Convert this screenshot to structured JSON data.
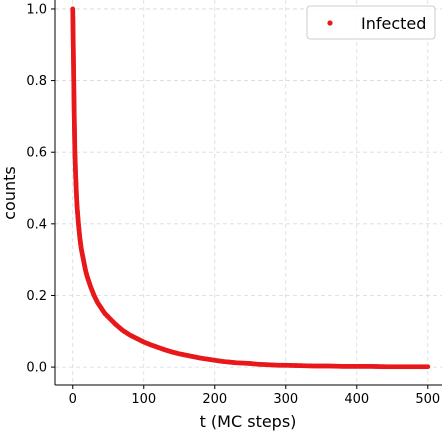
{
  "chart_data": {
    "type": "scatter",
    "xlabel": "t (MC steps)",
    "ylabel": "counts",
    "xlim": [
      -25,
      520
    ],
    "ylim": [
      -0.05,
      1.025
    ],
    "x_ticks": [
      0,
      100,
      200,
      300,
      400,
      500
    ],
    "x_tick_labels": [
      "0",
      "100",
      "200",
      "300",
      "400",
      "500"
    ],
    "y_ticks": [
      0.0,
      0.2,
      0.4,
      0.6,
      0.8,
      1.0
    ],
    "y_tick_labels": [
      "0.0",
      "0.2",
      "0.4",
      "0.6",
      "0.8",
      "1.0"
    ],
    "grid": true,
    "legend_position": "top-right",
    "series": [
      {
        "name": "Infected",
        "color": "#e8191b",
        "marker": "dot",
        "x": [
          0,
          1,
          2,
          3,
          4,
          5,
          6,
          8,
          10,
          12,
          15,
          18,
          20,
          25,
          30,
          35,
          40,
          45,
          50,
          60,
          70,
          80,
          90,
          100,
          110,
          120,
          130,
          140,
          150,
          160,
          170,
          180,
          190,
          200,
          210,
          220,
          230,
          240,
          250,
          260,
          270,
          280,
          290,
          300,
          320,
          340,
          360,
          380,
          400,
          420,
          440,
          460,
          480,
          500
        ],
        "y": [
          1.0,
          0.86,
          0.71,
          0.6,
          0.54,
          0.49,
          0.45,
          0.4,
          0.36,
          0.33,
          0.3,
          0.27,
          0.255,
          0.225,
          0.2,
          0.18,
          0.165,
          0.15,
          0.14,
          0.12,
          0.103,
          0.09,
          0.08,
          0.07,
          0.062,
          0.055,
          0.048,
          0.042,
          0.037,
          0.033,
          0.029,
          0.025,
          0.022,
          0.019,
          0.016,
          0.014,
          0.012,
          0.011,
          0.01,
          0.008,
          0.007,
          0.006,
          0.005,
          0.005,
          0.004,
          0.003,
          0.003,
          0.002,
          0.002,
          0.002,
          0.001,
          0.001,
          0.001,
          0.001
        ]
      }
    ]
  }
}
